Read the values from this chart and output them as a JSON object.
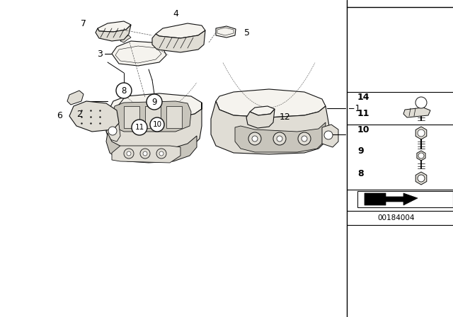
{
  "bg_color": "#ffffff",
  "diagram_id": "00184004",
  "line_color": "#111111",
  "fill_light": "#f5f3ee",
  "fill_mid": "#e0ddd5",
  "fill_dark": "#c8c5bc"
}
